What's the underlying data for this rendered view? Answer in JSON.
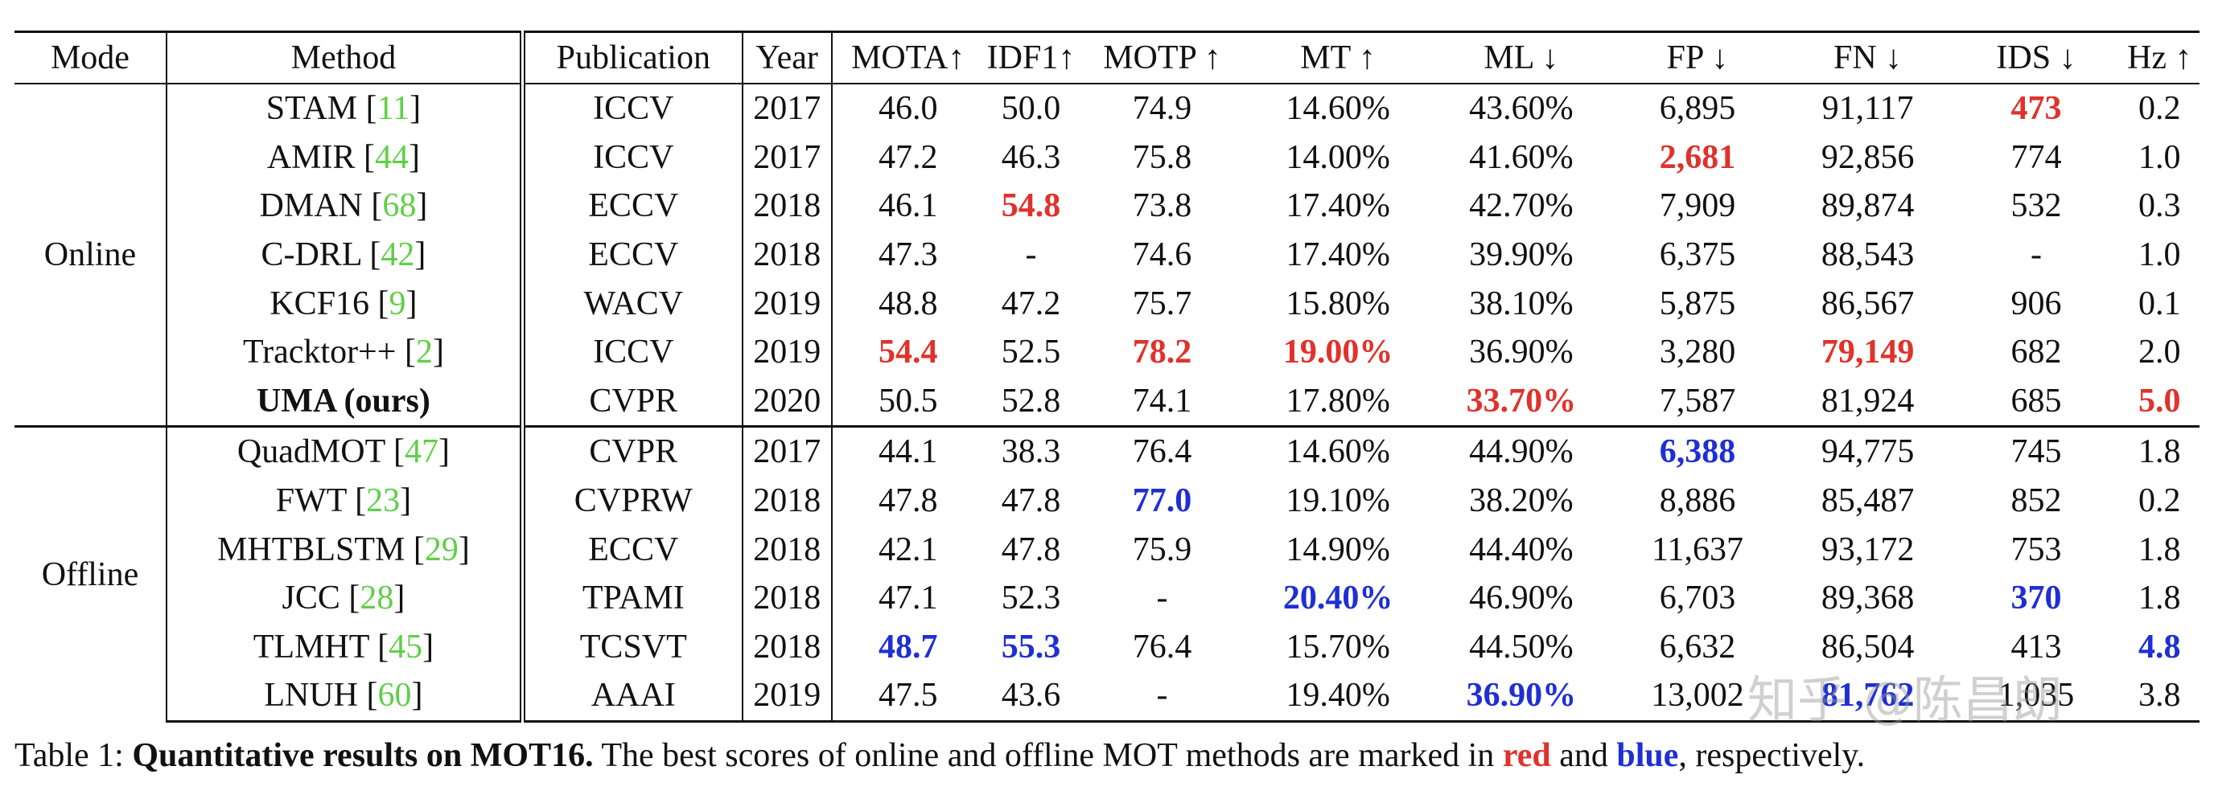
{
  "table": {
    "headers": [
      "Mode",
      "Method",
      "Publication",
      "Year",
      "MOTA↑",
      "IDF1↑",
      "MOTP ↑",
      "MT ↑",
      "ML ↓",
      "FP ↓",
      "FN ↓",
      "IDS ↓",
      "Hz ↑"
    ],
    "groups": [
      {
        "mode": "Online",
        "rows": [
          {
            "method": "STAM",
            "ref": "11",
            "pub": "ICCV",
            "year": "2017",
            "cells": [
              {
                "v": "46.0"
              },
              {
                "v": "50.0"
              },
              {
                "v": "74.9"
              },
              {
                "v": "14.60%"
              },
              {
                "v": "43.60%"
              },
              {
                "v": "6,895"
              },
              {
                "v": "91,117"
              },
              {
                "v": "473",
                "h": "red"
              },
              {
                "v": "0.2"
              }
            ]
          },
          {
            "method": "AMIR",
            "ref": "44",
            "pub": "ICCV",
            "year": "2017",
            "cells": [
              {
                "v": "47.2"
              },
              {
                "v": "46.3"
              },
              {
                "v": "75.8"
              },
              {
                "v": "14.00%"
              },
              {
                "v": "41.60%"
              },
              {
                "v": "2,681",
                "h": "red"
              },
              {
                "v": "92,856"
              },
              {
                "v": "774"
              },
              {
                "v": "1.0"
              }
            ]
          },
          {
            "method": "DMAN",
            "ref": "68",
            "pub": "ECCV",
            "year": "2018",
            "cells": [
              {
                "v": "46.1"
              },
              {
                "v": "54.8",
                "h": "red"
              },
              {
                "v": "73.8"
              },
              {
                "v": "17.40%"
              },
              {
                "v": "42.70%"
              },
              {
                "v": "7,909"
              },
              {
                "v": "89,874"
              },
              {
                "v": "532"
              },
              {
                "v": "0.3"
              }
            ]
          },
          {
            "method": "C-DRL",
            "ref": "42",
            "pub": "ECCV",
            "year": "2018",
            "cells": [
              {
                "v": "47.3"
              },
              {
                "v": "-"
              },
              {
                "v": "74.6"
              },
              {
                "v": "17.40%"
              },
              {
                "v": "39.90%"
              },
              {
                "v": "6,375"
              },
              {
                "v": "88,543"
              },
              {
                "v": "-"
              },
              {
                "v": "1.0"
              }
            ]
          },
          {
            "method": "KCF16",
            "ref": "9",
            "pub": "WACV",
            "year": "2019",
            "cells": [
              {
                "v": "48.8"
              },
              {
                "v": "47.2"
              },
              {
                "v": "75.7"
              },
              {
                "v": "15.80%"
              },
              {
                "v": "38.10%"
              },
              {
                "v": "5,875"
              },
              {
                "v": "86,567"
              },
              {
                "v": "906"
              },
              {
                "v": "0.1"
              }
            ]
          },
          {
            "method": "Tracktor++",
            "ref": "2",
            "pub": "ICCV",
            "year": "2019",
            "cells": [
              {
                "v": "54.4",
                "h": "red"
              },
              {
                "v": "52.5"
              },
              {
                "v": "78.2",
                "h": "red"
              },
              {
                "v": "19.00%",
                "h": "red"
              },
              {
                "v": "36.90%"
              },
              {
                "v": "3,280"
              },
              {
                "v": "79,149",
                "h": "red"
              },
              {
                "v": "682"
              },
              {
                "v": "2.0"
              }
            ]
          },
          {
            "method": "UMA (ours)",
            "ref": "",
            "bold": true,
            "pub": "CVPR",
            "year": "2020",
            "cells": [
              {
                "v": "50.5"
              },
              {
                "v": "52.8"
              },
              {
                "v": "74.1"
              },
              {
                "v": "17.80%"
              },
              {
                "v": "33.70%",
                "h": "red"
              },
              {
                "v": "7,587"
              },
              {
                "v": "81,924"
              },
              {
                "v": "685"
              },
              {
                "v": "5.0",
                "h": "red"
              }
            ]
          }
        ]
      },
      {
        "mode": "Offline",
        "rows": [
          {
            "method": "QuadMOT",
            "ref": "47",
            "pub": "CVPR",
            "year": "2017",
            "cells": [
              {
                "v": "44.1"
              },
              {
                "v": "38.3"
              },
              {
                "v": "76.4"
              },
              {
                "v": "14.60%"
              },
              {
                "v": "44.90%"
              },
              {
                "v": "6,388",
                "h": "blue"
              },
              {
                "v": "94,775"
              },
              {
                "v": "745"
              },
              {
                "v": "1.8"
              }
            ]
          },
          {
            "method": "FWT",
            "ref": "23",
            "pub": "CVPRW",
            "year": "2018",
            "cells": [
              {
                "v": "47.8"
              },
              {
                "v": "47.8"
              },
              {
                "v": "77.0",
                "h": "blue"
              },
              {
                "v": "19.10%"
              },
              {
                "v": "38.20%"
              },
              {
                "v": "8,886"
              },
              {
                "v": "85,487"
              },
              {
                "v": "852"
              },
              {
                "v": "0.2"
              }
            ]
          },
          {
            "method": "MHTBLSTM",
            "ref": "29",
            "pub": "ECCV",
            "year": "2018",
            "cells": [
              {
                "v": "42.1"
              },
              {
                "v": "47.8"
              },
              {
                "v": "75.9"
              },
              {
                "v": "14.90%"
              },
              {
                "v": "44.40%"
              },
              {
                "v": "11,637"
              },
              {
                "v": "93,172"
              },
              {
                "v": "753"
              },
              {
                "v": "1.8"
              }
            ]
          },
          {
            "method": "JCC",
            "ref": "28",
            "pub": "TPAMI",
            "year": "2018",
            "cells": [
              {
                "v": "47.1"
              },
              {
                "v": "52.3"
              },
              {
                "v": "-"
              },
              {
                "v": "20.40%",
                "h": "blue"
              },
              {
                "v": "46.90%"
              },
              {
                "v": "6,703"
              },
              {
                "v": "89,368"
              },
              {
                "v": "370",
                "h": "blue"
              },
              {
                "v": "1.8"
              }
            ]
          },
          {
            "method": "TLMHT",
            "ref": "45",
            "pub": "TCSVT",
            "year": "2018",
            "cells": [
              {
                "v": "48.7",
                "h": "blue"
              },
              {
                "v": "55.3",
                "h": "blue"
              },
              {
                "v": "76.4"
              },
              {
                "v": "15.70%"
              },
              {
                "v": "44.50%"
              },
              {
                "v": "6,632"
              },
              {
                "v": "86,504"
              },
              {
                "v": "413"
              },
              {
                "v": "4.8",
                "h": "blue"
              }
            ]
          },
          {
            "method": "LNUH",
            "ref": "60",
            "pub": "AAAI",
            "year": "2019",
            "cells": [
              {
                "v": "47.5"
              },
              {
                "v": "43.6"
              },
              {
                "v": "-"
              },
              {
                "v": "19.40%"
              },
              {
                "v": "36.90%",
                "h": "blue"
              },
              {
                "v": "13,002"
              },
              {
                "v": "81,762",
                "h": "blue"
              },
              {
                "v": "1,035"
              },
              {
                "v": "3.8"
              }
            ]
          }
        ]
      }
    ]
  },
  "caption": {
    "prefix": "Table 1: ",
    "title": "Quantitative results on MOT16.",
    "text_before_red": " The best scores of online and offline MOT methods are marked in ",
    "red_word": "red",
    "and": " and ",
    "blue_word": "blue",
    "suffix": ", respectively."
  },
  "watermark": "知乎 @陈昌朗",
  "colors": {
    "red": "#e0322b",
    "blue": "#1f2fd4",
    "ref_green": "#5fd046"
  }
}
